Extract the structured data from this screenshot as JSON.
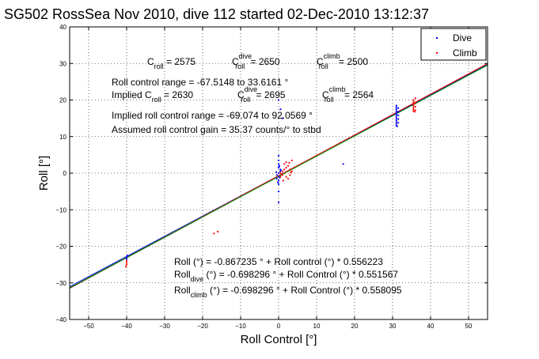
{
  "chart_data": {
    "type": "scatter",
    "title": "SG502 RossSea Nov 2010, dive 112 started 02-Dec-2010 13:12:37",
    "xlabel": "Roll Control [°]",
    "ylabel": "Roll [°]",
    "xlim": [
      -55,
      55
    ],
    "ylim": [
      -40,
      40
    ],
    "xticks": [
      -50,
      -40,
      -30,
      -20,
      -10,
      0,
      10,
      20,
      30,
      40,
      50
    ],
    "yticks": [
      -40,
      -30,
      -20,
      -10,
      0,
      10,
      20,
      30,
      40
    ],
    "grid": true,
    "legend_position": "top-right",
    "legend": [
      {
        "name": "Dive",
        "color": "#0000ff"
      },
      {
        "name": "Climb",
        "color": "#ff0000"
      }
    ],
    "series": [
      {
        "name": "Dive",
        "color": "#0000ff",
        "points": [
          [
            0.0,
            0.0
          ],
          [
            0.0,
            -1.0
          ],
          [
            0.0,
            1.5
          ],
          [
            0.0,
            -2.0
          ],
          [
            0.0,
            2.5
          ],
          [
            0.0,
            3.5
          ],
          [
            0.0,
            -3.0
          ],
          [
            0.0,
            -5.0
          ],
          [
            0.0,
            -8.0
          ],
          [
            0.0,
            4.8
          ],
          [
            0.4,
            0.5
          ],
          [
            -0.4,
            -0.5
          ],
          [
            0.5,
            1.0
          ],
          [
            -0.5,
            -1.5
          ],
          [
            0.2,
            2.0
          ],
          [
            -0.2,
            -2.5
          ],
          [
            0.6,
            0.8
          ],
          [
            -0.6,
            0.3
          ],
          [
            0.3,
            -1.2
          ],
          [
            0.1,
            1.8
          ],
          [
            0.0,
            20.0
          ],
          [
            0.5,
            17.5
          ],
          [
            1.0,
            15.0
          ],
          [
            31.0,
            13.0
          ],
          [
            31.0,
            13.5
          ],
          [
            31.0,
            14.0
          ],
          [
            31.0,
            14.5
          ],
          [
            31.0,
            15.0
          ],
          [
            31.0,
            15.5
          ],
          [
            31.0,
            16.0
          ],
          [
            31.0,
            16.5
          ],
          [
            31.0,
            17.0
          ],
          [
            31.0,
            17.5
          ],
          [
            31.0,
            18.0
          ],
          [
            31.0,
            18.5
          ],
          [
            31.5,
            13.8
          ],
          [
            31.5,
            14.8
          ],
          [
            31.5,
            15.8
          ],
          [
            31.5,
            16.8
          ],
          [
            31.5,
            17.8
          ],
          [
            31.2,
            12.8
          ],
          [
            17.0,
            2.5
          ],
          [
            -40.0,
            -23.0
          ],
          [
            -40.0,
            -23.5
          ],
          [
            -39.8,
            -22.5
          ]
        ]
      },
      {
        "name": "Climb",
        "color": "#ff0000",
        "points": [
          [
            0.5,
            0.0
          ],
          [
            1.0,
            0.5
          ],
          [
            1.5,
            1.0
          ],
          [
            2.0,
            1.5
          ],
          [
            2.5,
            2.0
          ],
          [
            3.0,
            1.0
          ],
          [
            1.0,
            -0.5
          ],
          [
            2.0,
            -1.0
          ],
          [
            3.0,
            -0.5
          ],
          [
            1.5,
            2.5
          ],
          [
            2.5,
            -1.5
          ],
          [
            3.5,
            0.5
          ],
          [
            0.5,
            -1.0
          ],
          [
            3.5,
            3.5
          ],
          [
            2.0,
            3.0
          ],
          [
            1.2,
            -2.0
          ],
          [
            2.8,
            2.8
          ],
          [
            3.2,
            0.2
          ],
          [
            35.5,
            17.0
          ],
          [
            35.5,
            17.5
          ],
          [
            35.5,
            18.0
          ],
          [
            35.5,
            18.5
          ],
          [
            35.5,
            19.0
          ],
          [
            35.5,
            19.5
          ],
          [
            35.5,
            20.0
          ],
          [
            36.0,
            20.5
          ],
          [
            36.0,
            19.2
          ],
          [
            36.0,
            18.2
          ],
          [
            36.0,
            17.2
          ],
          [
            35.8,
            16.8
          ],
          [
            -40.0,
            -24.0
          ],
          [
            -40.0,
            -24.5
          ],
          [
            -40.0,
            -25.0
          ],
          [
            -40.2,
            -25.5
          ],
          [
            -16.0,
            -16.0
          ],
          [
            -17.0,
            -16.5
          ]
        ]
      }
    ],
    "fit_lines": [
      {
        "color": "#000000",
        "intercept": -0.867235,
        "slope": 0.556223
      },
      {
        "color": "#0000ff",
        "intercept": -0.698296,
        "slope": 0.551567
      },
      {
        "color": "#ff0000",
        "intercept": -0.698296,
        "slope": 0.558095
      },
      {
        "color": "#00a000",
        "intercept": -0.9,
        "slope": 0.553
      }
    ],
    "annotations_top": {
      "c_roll_base": "C",
      "c_roll_sub": "roll",
      "c_roll_val": " = 2575",
      "c_dive_base": "C",
      "c_dive_sub": "roll",
      "c_dive_sup": "dive",
      "c_dive_val": " = 2650",
      "c_climb_base": "C",
      "c_climb_sub": "roll",
      "c_climb_sup": "climb",
      "c_climb_val": " = 2500",
      "range_line": "Roll control range = -67.5148 to 33.6161 °",
      "implied_base": "Implied C",
      "implied_sub": "roll",
      "implied_val": " = 2630",
      "implied_dive_base": "C",
      "implied_dive_sub": "roll",
      "implied_dive_sup": "dive",
      "implied_dive_val": " = 2695",
      "implied_climb_base": "C",
      "implied_climb_sub": "roll",
      "implied_climb_sup": "climb",
      "implied_climb_val": " = 2564",
      "implied_range": "Implied roll control range = -69.074 to 92.0569 °",
      "gain": "Assumed roll control gain = 35.37 counts/° to stbd"
    },
    "annotations_bottom": {
      "fit_all": "Roll (°) = -0.867235 ° + Roll control (°) * 0.556223",
      "fit_dive_base": "Roll",
      "fit_dive_sub": "dive",
      "fit_dive_rest": " (°) = -0.698296 ° + Roll Control (°) * 0.551567",
      "fit_climb_base": "Roll",
      "fit_climb_sub": "climb",
      "fit_climb_rest": " (°) = -0.698296 ° + Roll Control (°) * 0.558095"
    }
  }
}
